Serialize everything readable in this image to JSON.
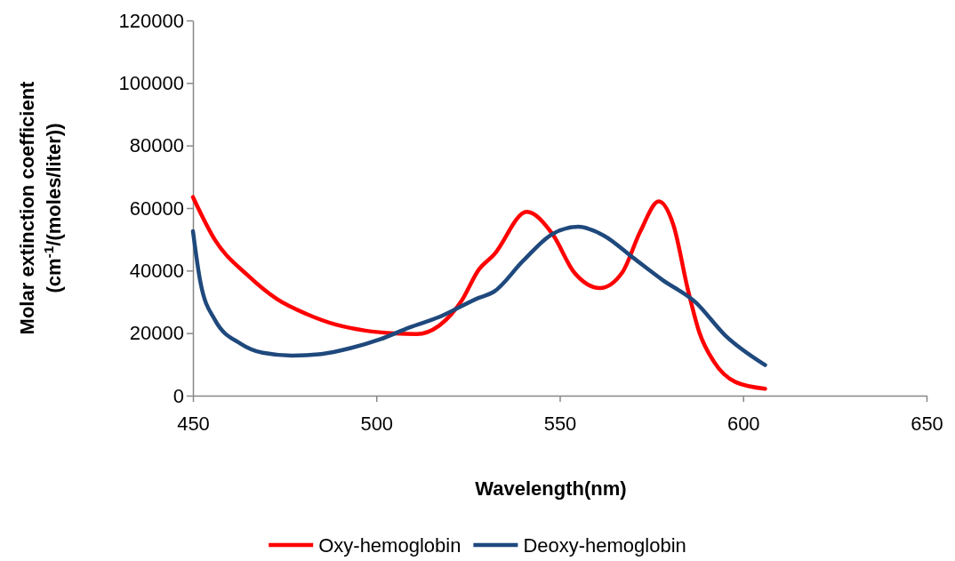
{
  "chart_data": {
    "type": "line",
    "xlabel": "Wavelength(nm)",
    "ylabel": "Molar extinction coefficient\n(cm$^{-1}$/(moles/liter))",
    "xlim": [
      450,
      650
    ],
    "xticks": [
      450,
      500,
      550,
      600,
      650
    ],
    "ylim": [
      0,
      120000
    ],
    "yticks": [
      0,
      20000,
      40000,
      60000,
      80000,
      100000,
      120000
    ],
    "grid": false,
    "legend": "bottom",
    "marker": "none",
    "line_style": "solid",
    "series": [
      {
        "name": "Oxy-hemoglobin",
        "color": "#ff0000",
        "x": [
          450,
          456,
          465,
          473,
          481,
          489,
          497,
          505,
          511,
          517,
          523,
          528,
          532,
          541,
          548,
          554,
          561,
          567,
          572,
          577,
          581,
          585,
          588,
          592,
          598,
          606
        ],
        "values": [
          63500,
          49800,
          38400,
          30800,
          26100,
          22700,
          20800,
          19900,
          19700,
          22300,
          29900,
          40400,
          45000,
          58800,
          51700,
          39300,
          34400,
          39300,
          52600,
          62100,
          54500,
          33600,
          20400,
          10900,
          4300,
          2200
        ]
      },
      {
        "name": "Deoxy-hemoglobin",
        "color": "#1f497d",
        "x": [
          450,
          452,
          456,
          463,
          469,
          477,
          485,
          493,
          501,
          509,
          517,
          528,
          532,
          540,
          548,
          555,
          562,
          570,
          578,
          587,
          595,
          606
        ],
        "values": [
          52600,
          36500,
          24200,
          16600,
          13700,
          12800,
          13300,
          15200,
          18000,
          21800,
          25100,
          31300,
          33200,
          43100,
          51700,
          54000,
          51200,
          44100,
          37000,
          29900,
          19400,
          9800
        ]
      }
    ]
  }
}
